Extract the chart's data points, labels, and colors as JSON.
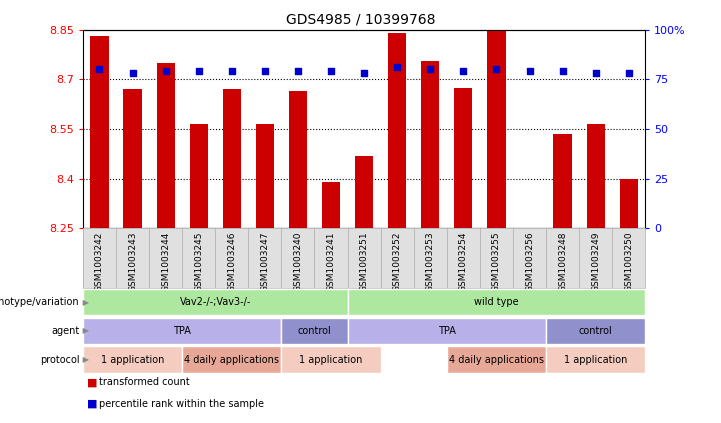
{
  "title": "GDS4985 / 10399768",
  "samples": [
    "GSM1003242",
    "GSM1003243",
    "GSM1003244",
    "GSM1003245",
    "GSM1003246",
    "GSM1003247",
    "GSM1003240",
    "GSM1003241",
    "GSM1003251",
    "GSM1003252",
    "GSM1003253",
    "GSM1003254",
    "GSM1003255",
    "GSM1003256",
    "GSM1003248",
    "GSM1003249",
    "GSM1003250"
  ],
  "bar_values": [
    8.83,
    8.67,
    8.75,
    8.565,
    8.67,
    8.565,
    8.665,
    8.39,
    8.47,
    8.84,
    8.755,
    8.675,
    8.85,
    8.25,
    8.535,
    8.565,
    8.4
  ],
  "dot_values": [
    80,
    78,
    79,
    79,
    79,
    79,
    79,
    79,
    78,
    81,
    80,
    79,
    80,
    79,
    79,
    78,
    78
  ],
  "ymin": 8.25,
  "ymax": 8.85,
  "y_ticks_left": [
    8.25,
    8.4,
    8.55,
    8.7,
    8.85
  ],
  "y_ticks_right": [
    0,
    25,
    50,
    75,
    100
  ],
  "bar_color": "#cc0000",
  "dot_color": "#0000cc",
  "hgrid_lines": [
    8.4,
    8.55,
    8.7
  ],
  "annotation_rows": [
    {
      "label": "genotype/variation",
      "segments": [
        {
          "text": "Vav2-/-;Vav3-/-",
          "start": 0,
          "end": 8,
          "color": "#aee8a0"
        },
        {
          "text": "wild type",
          "start": 8,
          "end": 17,
          "color": "#aee8a0"
        }
      ]
    },
    {
      "label": "agent",
      "segments": [
        {
          "text": "TPA",
          "start": 0,
          "end": 6,
          "color": "#b8b0e8"
        },
        {
          "text": "control",
          "start": 6,
          "end": 8,
          "color": "#9090cc"
        },
        {
          "text": "TPA",
          "start": 8,
          "end": 14,
          "color": "#b8b0e8"
        },
        {
          "text": "control",
          "start": 14,
          "end": 17,
          "color": "#9090cc"
        }
      ]
    },
    {
      "label": "protocol",
      "segments": [
        {
          "text": "1 application",
          "start": 0,
          "end": 3,
          "color": "#f5cdc0"
        },
        {
          "text": "4 daily applications",
          "start": 3,
          "end": 6,
          "color": "#e8a898"
        },
        {
          "text": "1 application",
          "start": 6,
          "end": 9,
          "color": "#f5cdc0"
        },
        {
          "text": "4 daily applications",
          "start": 11,
          "end": 14,
          "color": "#e8a898"
        },
        {
          "text": "1 application",
          "start": 14,
          "end": 17,
          "color": "#f5cdc0"
        }
      ]
    }
  ],
  "legend": [
    {
      "color": "#cc0000",
      "label": "transformed count"
    },
    {
      "color": "#0000cc",
      "label": "percentile rank within the sample"
    }
  ]
}
